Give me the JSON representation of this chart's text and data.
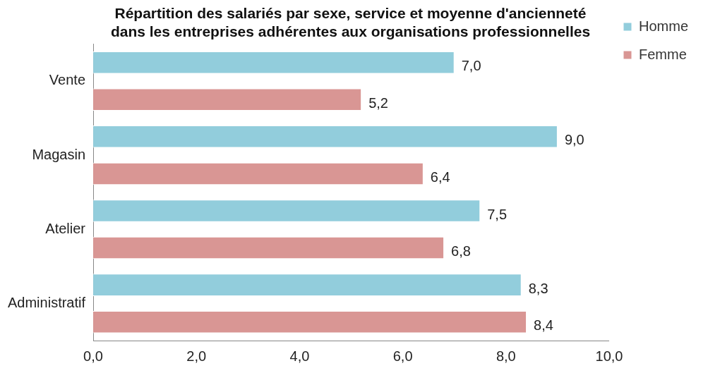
{
  "chart_data": {
    "type": "bar",
    "orientation": "horizontal",
    "title": "Répartition des salariés par sexe, service et moyenne d'ancienneté dans les entreprises adhérentes aux organisations professionnelles",
    "categories": [
      "Vente",
      "Magasin",
      "Atelier",
      "Administratif"
    ],
    "series": [
      {
        "name": "Homme",
        "color": "#92cddc",
        "values": [
          7.0,
          9.0,
          7.5,
          8.3
        ],
        "value_labels": [
          "7,0",
          "9,0",
          "7,5",
          "8,3"
        ]
      },
      {
        "name": "Femme",
        "color": "#d99694",
        "values": [
          5.2,
          6.4,
          6.8,
          8.4
        ],
        "value_labels": [
          "5,2",
          "6,4",
          "6,8",
          "8,4"
        ]
      }
    ],
    "xlim": [
      0,
      10
    ],
    "xticks": [
      {
        "value": 0,
        "label": "0,0"
      },
      {
        "value": 2,
        "label": "2,0"
      },
      {
        "value": 4,
        "label": "4,0"
      },
      {
        "value": 6,
        "label": "6,0"
      },
      {
        "value": 8,
        "label": "8,0"
      },
      {
        "value": 10,
        "label": "10,0"
      }
    ],
    "grid": false,
    "legend": "top right"
  }
}
